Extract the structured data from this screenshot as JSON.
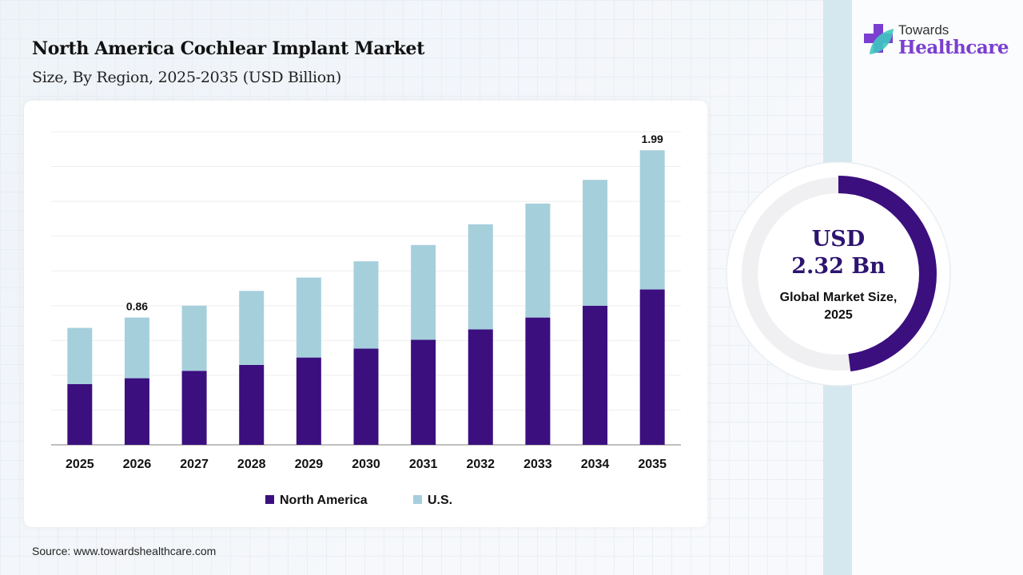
{
  "header": {
    "title": "North America Cochlear Implant Market",
    "subtitle": "Size, By Region, 2025-2035 (USD Billion)"
  },
  "logo": {
    "line1": "Towards",
    "line2": "Healthcare",
    "icon": "medical-cross-leaf-icon",
    "color": "#7a3fd0"
  },
  "source": "Source: www.towardshealthcare.com",
  "donut": {
    "currency": "USD",
    "value": "2.32 Bn",
    "label": "Global Market Size, 2025",
    "fill_fraction": 0.48,
    "color": "#3b0f7e",
    "track_color": "#f0eff1"
  },
  "chart_data": {
    "type": "bar",
    "stacked": true,
    "title": "North America Cochlear Implant Market",
    "subtitle": "Size, By Region, 2025-2035 (USD Billion)",
    "categories": [
      "2025",
      "2026",
      "2027",
      "2028",
      "2029",
      "2030",
      "2031",
      "2032",
      "2033",
      "2034",
      "2035"
    ],
    "series": [
      {
        "name": "North America",
        "color": "#3b0f7e",
        "values": [
          0.41,
          0.45,
          0.5,
          0.54,
          0.59,
          0.65,
          0.71,
          0.78,
          0.86,
          0.94,
          1.05
        ]
      },
      {
        "name": "U.S.",
        "color": "#a6cfdc",
        "values": [
          0.38,
          0.41,
          0.44,
          0.5,
          0.54,
          0.59,
          0.64,
          0.71,
          0.77,
          0.85,
          0.94
        ]
      }
    ],
    "data_labels": [
      {
        "category": "2026",
        "text": "0.86"
      },
      {
        "category": "2035",
        "text": "1.99"
      }
    ],
    "ylim": [
      0,
      2.115
    ],
    "grid": true,
    "legend": "bottom"
  }
}
